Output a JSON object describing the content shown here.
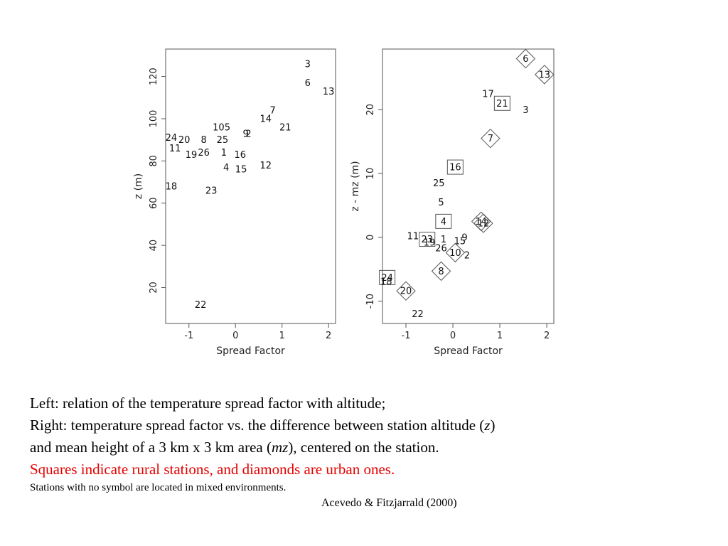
{
  "chart_data": [
    {
      "type": "scatter",
      "xlabel": "Spread Factor",
      "ylabel": "z (m)",
      "xlim": [
        -1.5,
        2.15
      ],
      "ylim": [
        3,
        133
      ],
      "xticks": [
        -1,
        0,
        1,
        2
      ],
      "yticks": [
        20,
        40,
        60,
        80,
        100,
        120
      ],
      "grid": false,
      "points": [
        {
          "label": "3",
          "x": 1.55,
          "y": 126,
          "marker": "none"
        },
        {
          "label": "6",
          "x": 1.55,
          "y": 117,
          "marker": "none"
        },
        {
          "label": "13",
          "x": 2.0,
          "y": 113,
          "marker": "none"
        },
        {
          "label": "7",
          "x": 0.8,
          "y": 104,
          "marker": "none"
        },
        {
          "label": "14",
          "x": 0.65,
          "y": 100,
          "marker": "none"
        },
        {
          "label": "21",
          "x": 1.07,
          "y": 96,
          "marker": "none"
        },
        {
          "label": "105",
          "x": -0.3,
          "y": 96,
          "marker": "none"
        },
        {
          "label": "9",
          "x": 0.22,
          "y": 93,
          "marker": "none"
        },
        {
          "label": "2",
          "x": 0.28,
          "y": 93,
          "marker": "none"
        },
        {
          "label": "24",
          "x": -1.38,
          "y": 91,
          "marker": "none"
        },
        {
          "label": "20",
          "x": -1.1,
          "y": 90,
          "marker": "none"
        },
        {
          "label": "8",
          "x": -0.68,
          "y": 90,
          "marker": "none"
        },
        {
          "label": "25",
          "x": -0.28,
          "y": 90,
          "marker": "none"
        },
        {
          "label": "11",
          "x": -1.3,
          "y": 86,
          "marker": "none"
        },
        {
          "label": "19",
          "x": -0.95,
          "y": 83,
          "marker": "none"
        },
        {
          "label": "26",
          "x": -0.68,
          "y": 84,
          "marker": "none"
        },
        {
          "label": "1",
          "x": -0.25,
          "y": 84,
          "marker": "none"
        },
        {
          "label": "16",
          "x": 0.1,
          "y": 83,
          "marker": "none"
        },
        {
          "label": "4",
          "x": -0.2,
          "y": 77,
          "marker": "none"
        },
        {
          "label": "15",
          "x": 0.12,
          "y": 76,
          "marker": "none"
        },
        {
          "label": "12",
          "x": 0.65,
          "y": 78,
          "marker": "none"
        },
        {
          "label": "18",
          "x": -1.38,
          "y": 68,
          "marker": "none"
        },
        {
          "label": "23",
          "x": -0.52,
          "y": 66,
          "marker": "none"
        },
        {
          "label": "22",
          "x": -0.75,
          "y": 12,
          "marker": "none"
        }
      ]
    },
    {
      "type": "scatter",
      "xlabel": "Spread Factor",
      "ylabel": "z - mz (m)",
      "xlim": [
        -1.5,
        2.15
      ],
      "ylim": [
        -13.5,
        29.5
      ],
      "xticks": [
        -1,
        0,
        1,
        2
      ],
      "yticks": [
        -10,
        0,
        10,
        20
      ],
      "grid": false,
      "points": [
        {
          "label": "6",
          "x": 1.55,
          "y": 28,
          "marker": "diamond"
        },
        {
          "label": "13",
          "x": 1.95,
          "y": 25.5,
          "marker": "diamond"
        },
        {
          "label": "17",
          "x": 0.75,
          "y": 22.5,
          "marker": "none"
        },
        {
          "label": "21",
          "x": 1.05,
          "y": 21,
          "marker": "square"
        },
        {
          "label": "3",
          "x": 1.55,
          "y": 20,
          "marker": "none"
        },
        {
          "label": "7",
          "x": 0.8,
          "y": 15.5,
          "marker": "diamond"
        },
        {
          "label": "16",
          "x": 0.05,
          "y": 11,
          "marker": "square"
        },
        {
          "label": "25",
          "x": -0.3,
          "y": 8.5,
          "marker": "none"
        },
        {
          "label": "5",
          "x": -0.25,
          "y": 5.5,
          "marker": "none"
        },
        {
          "label": "4",
          "x": -0.2,
          "y": 2.5,
          "marker": "square"
        },
        {
          "label": "14",
          "x": 0.6,
          "y": 2.5,
          "marker": "diamond"
        },
        {
          "label": "12",
          "x": 0.65,
          "y": 2.2,
          "marker": "diamond"
        },
        {
          "label": "11",
          "x": -0.85,
          "y": 0.2,
          "marker": "none"
        },
        {
          "label": "23",
          "x": -0.55,
          "y": -0.3,
          "marker": "square"
        },
        {
          "label": "1",
          "x": -0.2,
          "y": -0.3,
          "marker": "none"
        },
        {
          "label": "9",
          "x": 0.25,
          "y": 0.0,
          "marker": "none"
        },
        {
          "label": "15",
          "x": 0.15,
          "y": -0.6,
          "marker": "none"
        },
        {
          "label": "19",
          "x": -0.5,
          "y": -0.8,
          "marker": "none"
        },
        {
          "label": "26",
          "x": -0.25,
          "y": -1.7,
          "marker": "none"
        },
        {
          "label": "10",
          "x": 0.05,
          "y": -2.4,
          "marker": "diamond"
        },
        {
          "label": "2",
          "x": 0.3,
          "y": -2.8,
          "marker": "none"
        },
        {
          "label": "8",
          "x": -0.25,
          "y": -5.3,
          "marker": "diamond"
        },
        {
          "label": "24",
          "x": -1.4,
          "y": -6.3,
          "marker": "square"
        },
        {
          "label": "18",
          "x": -1.42,
          "y": -6.9,
          "marker": "none"
        },
        {
          "label": "20",
          "x": -1.0,
          "y": -8.4,
          "marker": "diamond"
        },
        {
          "label": "22",
          "x": -0.75,
          "y": -12.0,
          "marker": "none"
        }
      ]
    }
  ],
  "caption": {
    "line1": "Left: relation of the temperature spread factor with altitude;",
    "line2_pre": "Right:  temperature spread factor vs. the difference between station altitude (",
    "line2_var": "z",
    "line2_post": ")",
    "line3_pre": "and mean height of a 3 km x 3 km area (",
    "line3_var": "mz",
    "line3_post": "), centered on the station.",
    "line4": "Squares indicate rural stations, and diamonds are urban ones.",
    "line5": "Stations with no symbol are located in mixed environments.",
    "citation": "Acevedo & Fitzjarrald (2000)"
  },
  "colors": {
    "caption_highlight": "#e60000",
    "axis": "#555555",
    "text": "#111111"
  }
}
